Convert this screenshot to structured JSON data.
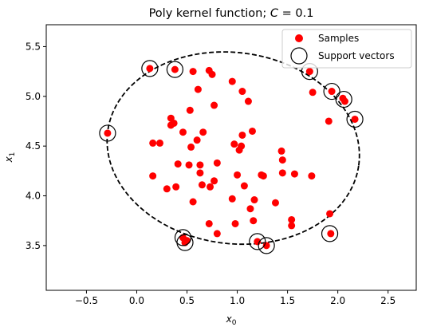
{
  "chart_data": {
    "type": "scatter",
    "title": "Poly kernel function; C = 0.1",
    "title_parts": {
      "prefix": "Poly kernel function; ",
      "italic": "C",
      "suffix": " = 0.1"
    },
    "xlabel": "x0",
    "xlabel_parts": {
      "base": "x",
      "sub": "0"
    },
    "ylabel": "x1",
    "ylabel_parts": {
      "base": "x",
      "sub": "1"
    },
    "xlim": [
      -0.9,
      2.78
    ],
    "ylim": [
      3.05,
      5.72
    ],
    "xticks": [
      -0.5,
      0.0,
      0.5,
      1.0,
      1.5,
      2.0,
      2.5
    ],
    "xtick_labels": [
      "−0.5",
      "0.0",
      "0.5",
      "1.0",
      "1.5",
      "2.0",
      "2.5"
    ],
    "yticks": [
      3.5,
      4.0,
      4.5,
      5.0,
      5.5
    ],
    "ytick_labels": [
      "3.5",
      "4.0",
      "4.5",
      "5.0",
      "5.5"
    ],
    "grid": false,
    "legend": {
      "placement": "top-right",
      "entries": [
        {
          "label": "Samples",
          "marker": "red-dot"
        },
        {
          "label": "Support vectors",
          "marker": "open-circle"
        }
      ]
    },
    "colors": {
      "samples": "#ff0000",
      "support_vectors": "#000000",
      "boundary": "#000000"
    },
    "decision_boundary": {
      "style": "dashed",
      "center": [
        0.96,
        4.48
      ],
      "semi_axes": [
        1.26,
        0.96
      ],
      "rotation_deg": -8
    },
    "series": [
      {
        "name": "Samples",
        "points": [
          [
            -0.29,
            4.63
          ],
          [
            0.13,
            5.28
          ],
          [
            0.38,
            5.27
          ],
          [
            0.16,
            4.53
          ],
          [
            0.16,
            4.2
          ],
          [
            0.23,
            4.53
          ],
          [
            0.3,
            4.07
          ],
          [
            0.34,
            4.78
          ],
          [
            0.34,
            4.71
          ],
          [
            0.37,
            4.73
          ],
          [
            0.39,
            4.09
          ],
          [
            0.41,
            4.32
          ],
          [
            0.46,
            3.58
          ],
          [
            0.48,
            3.53
          ],
          [
            0.46,
            4.64
          ],
          [
            0.5,
            3.55
          ],
          [
            0.52,
            4.31
          ],
          [
            0.53,
            4.86
          ],
          [
            0.54,
            4.49
          ],
          [
            0.56,
            5.25
          ],
          [
            0.56,
            3.94
          ],
          [
            0.6,
            4.56
          ],
          [
            0.61,
            5.07
          ],
          [
            0.63,
            4.31
          ],
          [
            0.63,
            4.23
          ],
          [
            0.65,
            4.11
          ],
          [
            0.66,
            4.64
          ],
          [
            0.72,
            5.26
          ],
          [
            0.72,
            3.72
          ],
          [
            0.73,
            4.09
          ],
          [
            0.75,
            5.22
          ],
          [
            0.77,
            4.91
          ],
          [
            0.77,
            4.15
          ],
          [
            0.8,
            3.62
          ],
          [
            0.8,
            4.33
          ],
          [
            0.95,
            5.15
          ],
          [
            0.95,
            3.97
          ],
          [
            0.97,
            4.52
          ],
          [
            0.98,
            3.72
          ],
          [
            1.0,
            4.21
          ],
          [
            1.02,
            4.46
          ],
          [
            1.04,
            4.5
          ],
          [
            1.05,
            5.05
          ],
          [
            1.05,
            4.61
          ],
          [
            1.07,
            4.1
          ],
          [
            1.11,
            4.95
          ],
          [
            1.13,
            3.87
          ],
          [
            1.15,
            4.65
          ],
          [
            1.16,
            3.75
          ],
          [
            1.17,
            3.96
          ],
          [
            1.2,
            3.54
          ],
          [
            1.24,
            4.21
          ],
          [
            1.26,
            4.2
          ],
          [
            1.29,
            3.5
          ],
          [
            1.38,
            3.93
          ],
          [
            1.44,
            4.45
          ],
          [
            1.45,
            4.36
          ],
          [
            1.45,
            4.23
          ],
          [
            1.54,
            3.76
          ],
          [
            1.54,
            3.7
          ],
          [
            1.57,
            4.22
          ],
          [
            1.72,
            5.25
          ],
          [
            1.74,
            4.2
          ],
          [
            1.75,
            5.04
          ],
          [
            1.91,
            4.75
          ],
          [
            1.92,
            3.82
          ],
          [
            1.93,
            3.62
          ],
          [
            1.94,
            5.05
          ],
          [
            2.05,
            4.98
          ],
          [
            2.07,
            4.95
          ],
          [
            2.17,
            4.77
          ]
        ]
      },
      {
        "name": "Support vectors",
        "points": [
          [
            -0.29,
            4.63
          ],
          [
            0.13,
            5.28
          ],
          [
            0.38,
            5.27
          ],
          [
            0.46,
            3.58
          ],
          [
            0.48,
            3.53
          ],
          [
            1.2,
            3.54
          ],
          [
            1.29,
            3.5
          ],
          [
            1.72,
            5.25
          ],
          [
            1.92,
            3.62
          ],
          [
            1.94,
            5.05
          ],
          [
            2.06,
            4.97
          ],
          [
            2.17,
            4.77
          ]
        ]
      }
    ]
  }
}
